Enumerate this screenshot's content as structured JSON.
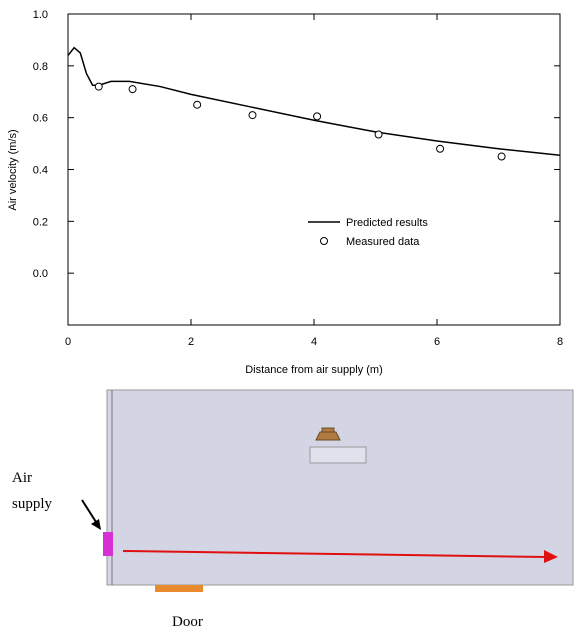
{
  "chart_data": {
    "type": "line",
    "xlabel": "Distance from air supply (m)",
    "ylabel": "Air velocity (m/s)",
    "xlim": [
      0,
      8
    ],
    "xticks": [
      0,
      2,
      4,
      6,
      8
    ],
    "ylim": [
      -0.2,
      1.0
    ],
    "yticks": [
      {
        "value": 0,
        "label": "0.0"
      },
      0.2,
      0.4,
      0.6,
      0.8,
      {
        "value": 1,
        "label": "1.0"
      }
    ],
    "legend": "center",
    "series": [
      {
        "name": "Predicted results",
        "type": "line",
        "color": "#000000",
        "x": [
          0,
          0.1,
          0.2,
          0.3,
          0.4,
          0.5,
          0.7,
          1,
          1.5,
          2,
          3,
          4,
          5,
          6,
          7,
          8
        ],
        "values": [
          0.84,
          0.87,
          0.85,
          0.77,
          0.725,
          0.725,
          0.74,
          0.74,
          0.72,
          0.69,
          0.64,
          0.59,
          0.545,
          0.51,
          0.48,
          0.455
        ]
      },
      {
        "name": "Measured data",
        "type": "scatter",
        "color": "#000000",
        "x": [
          0.5,
          1.05,
          2.1,
          3,
          4.05,
          5.05,
          6.05,
          7.05
        ],
        "values": [
          0.72,
          0.71,
          0.65,
          0.61,
          0.605,
          0.535,
          0.48,
          0.45
        ]
      }
    ]
  },
  "diagram": {
    "air_supply": [
      "Air",
      "supply"
    ],
    "door": "Door"
  }
}
